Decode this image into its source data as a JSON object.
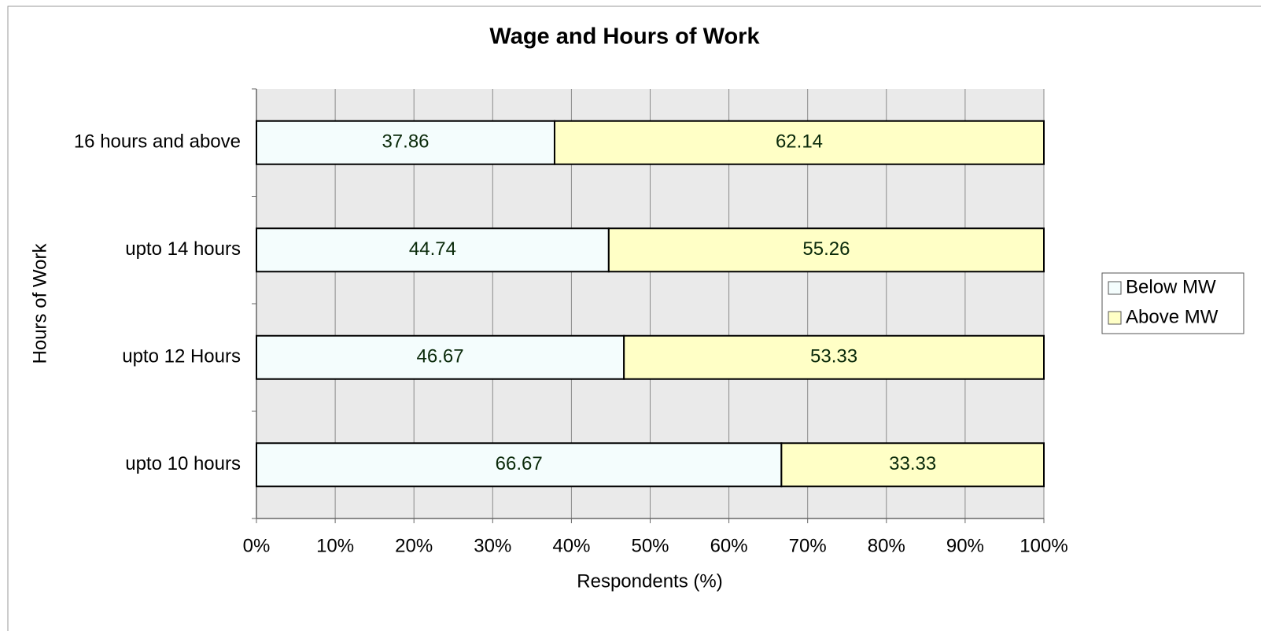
{
  "chart_data": {
    "type": "stacked_barh",
    "title": "Wage and Hours of Work",
    "xlabel": "Respondents (%)",
    "ylabel": "Hours of Work",
    "categories": [
      "16 hours and above",
      "upto 14 hours",
      "upto 12 Hours",
      "upto 10 hours"
    ],
    "series": [
      {
        "name": "Below MW",
        "color": "#f4fdfd",
        "values": [
          37.86,
          44.74,
          46.67,
          66.67
        ]
      },
      {
        "name": "Above MW",
        "color": "#ffffc6",
        "values": [
          62.14,
          55.26,
          53.33,
          33.33
        ]
      }
    ],
    "xlim": [
      0,
      100
    ],
    "xticks": [
      {
        "value": 0,
        "label": "0%"
      },
      {
        "value": 10,
        "label": "10%"
      },
      {
        "value": 20,
        "label": "20%"
      },
      {
        "value": 30,
        "label": "30%"
      },
      {
        "value": 40,
        "label": "40%"
      },
      {
        "value": 50,
        "label": "50%"
      },
      {
        "value": 60,
        "label": "60%"
      },
      {
        "value": 70,
        "label": "70%"
      },
      {
        "value": 80,
        "label": "80%"
      },
      {
        "value": 90,
        "label": "90%"
      },
      {
        "value": 100,
        "label": "100%"
      }
    ],
    "grid": true,
    "legend": "right"
  }
}
